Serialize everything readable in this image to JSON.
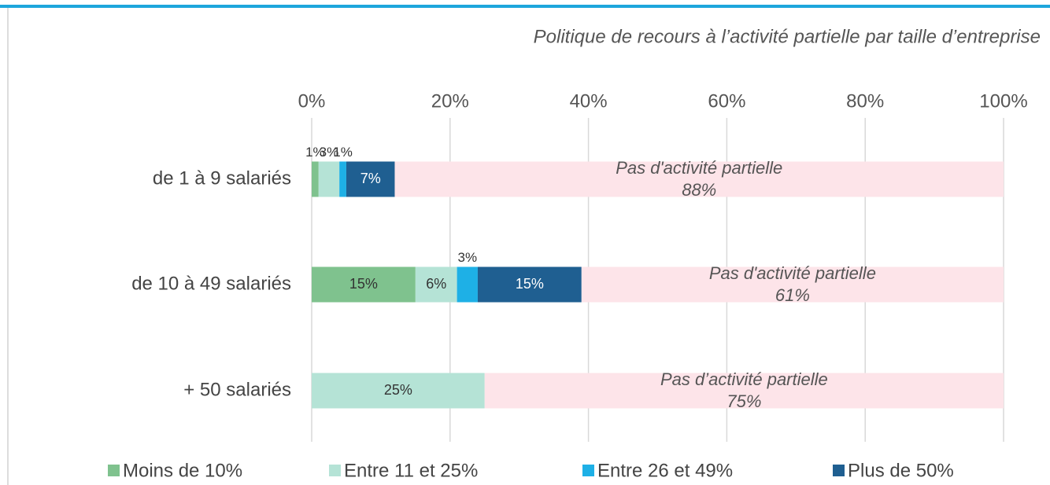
{
  "chart_data": {
    "type": "stacked-bar-horizontal",
    "title": "Politique de recours à l’activité partielle par taille d’entreprise",
    "categories": [
      "de 1 à 9 salariés",
      "de 10 à 49 salariés",
      "+ 50 salariés"
    ],
    "xlim": [
      0,
      100
    ],
    "xticks": [
      {
        "value": 0,
        "label": "0%"
      },
      {
        "value": 20,
        "label": "20%"
      },
      {
        "value": 40,
        "label": "40%"
      },
      {
        "value": 60,
        "label": "60%"
      },
      {
        "value": 80,
        "label": "80%"
      },
      {
        "value": 100,
        "label": "100%"
      }
    ],
    "grid": true,
    "legend": "bottom",
    "series": [
      {
        "name": "Moins de 10%",
        "color": "#7fc28e",
        "values": [
          1,
          15,
          null
        ],
        "value_labels": [
          "1%",
          "15%",
          null
        ]
      },
      {
        "name": "Entre 11 et 25%",
        "color": "#b5e3d6",
        "values": [
          3,
          6,
          25
        ],
        "value_labels": [
          "3%",
          "6%",
          "25%"
        ]
      },
      {
        "name": "Entre 26 et 49%",
        "color": "#1eb0e6",
        "values": [
          1,
          3,
          null
        ],
        "value_labels": [
          "1%",
          "3%",
          null
        ]
      },
      {
        "name": "Plus de 50%",
        "color": "#1f5f91",
        "values": [
          7,
          15,
          null
        ],
        "value_labels": [
          "7%",
          "15%",
          null
        ]
      },
      {
        "color": "#fde4e9",
        "values": [
          88,
          61,
          75
        ],
        "value_labels": [
          "88%",
          "61%",
          "75%"
        ],
        "segment_labels": [
          "Pas d'activité partielle",
          "Pas d'activité partielle",
          "Pas d’activité partielle"
        ]
      }
    ]
  }
}
